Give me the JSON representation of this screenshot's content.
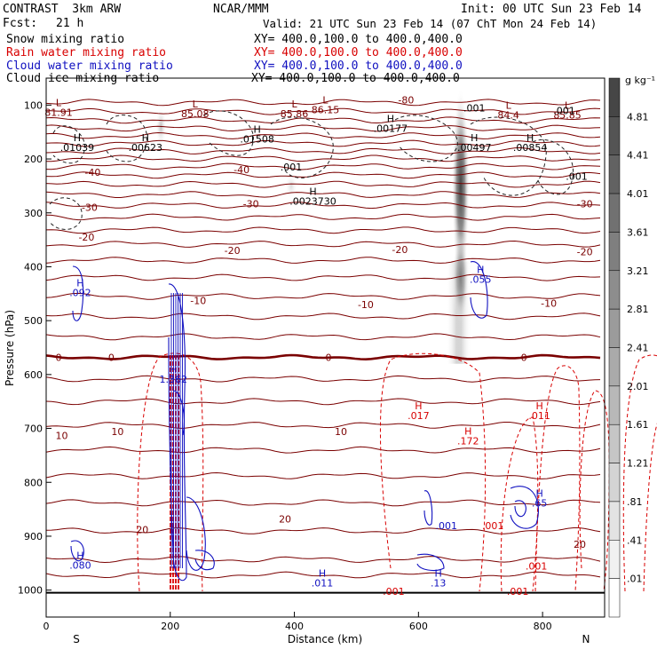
{
  "header": {
    "model": "CONTRAST  3km ARW",
    "fcst_label": "Fcst:",
    "fcst_value": "21 h",
    "center": "NCAR/MMM",
    "init": "Init: 00 UTC Sun 23 Feb 14",
    "valid": "Valid: 21 UTC Sun 23 Feb 14 (07 ChT Mon 24 Feb 14)",
    "fields": [
      {
        "name": "Snow mixing ratio",
        "xy": "XY= 400.0,100.0 to 400.0,400.0",
        "color": "#000000"
      },
      {
        "name": "Rain water mixing ratio",
        "xy": "XY= 400.0,100.0 to 400.0,400.0",
        "color": "#d80000"
      },
      {
        "name": "Cloud water mixing ratio",
        "xy": "XY= 400.0,100.0 to 400.0,400.0",
        "color": "#1010c0"
      },
      {
        "name": "Cloud ice mixing ratio",
        "xy": "XY= 400.0,100.0 to 400.0,400.0",
        "color": "#000000"
      }
    ]
  },
  "chart_data": {
    "type": "cross-section",
    "xlabel": "Distance (km)",
    "ylabel": "Pressure (hPa)",
    "xlim": [
      0,
      900
    ],
    "ylim": [
      1050,
      50
    ],
    "x_ticks": [
      0,
      200,
      400,
      600,
      800
    ],
    "y_ticks": [
      100,
      200,
      300,
      400,
      500,
      600,
      700,
      800,
      900,
      1000
    ],
    "x_end_labels": {
      "left": "S",
      "right": "N"
    },
    "colorbar": {
      "unit": "g kg⁻¹",
      "levels": [
        "4.81",
        "4.41",
        "4.01",
        "3.61",
        "3.21",
        "2.81",
        "2.41",
        "2.01",
        "1.61",
        "1.21",
        ".81",
        ".41",
        ".01"
      ]
    },
    "temperature_isotherm_labels": [
      {
        "label": "-80",
        "x": 580,
        "p": 90
      },
      {
        "label": "-40",
        "x": 75,
        "p": 225
      },
      {
        "label": "-40",
        "x": 315,
        "p": 220
      },
      {
        "label": "-30",
        "x": 70,
        "p": 290
      },
      {
        "label": "-30",
        "x": 330,
        "p": 283
      },
      {
        "label": "-30",
        "x": 868,
        "p": 283
      },
      {
        "label": "-20",
        "x": 65,
        "p": 345
      },
      {
        "label": "-20",
        "x": 300,
        "p": 370
      },
      {
        "label": "-20",
        "x": 570,
        "p": 368
      },
      {
        "label": "-20",
        "x": 868,
        "p": 372
      },
      {
        "label": "-10",
        "x": 245,
        "p": 463
      },
      {
        "label": "-10",
        "x": 515,
        "p": 470
      },
      {
        "label": "-10",
        "x": 810,
        "p": 468
      },
      {
        "label": "0",
        "x": 20,
        "p": 568
      },
      {
        "label": "0",
        "x": 105,
        "p": 568
      },
      {
        "label": "0",
        "x": 455,
        "p": 568
      },
      {
        "label": "0",
        "x": 770,
        "p": 568
      },
      {
        "label": "10",
        "x": 25,
        "p": 713
      },
      {
        "label": "10",
        "x": 115,
        "p": 706
      },
      {
        "label": "10",
        "x": 475,
        "p": 706
      },
      {
        "label": "20",
        "x": 155,
        "p": 888
      },
      {
        "label": "20",
        "x": 385,
        "p": 868
      },
      {
        "label": "20",
        "x": 860,
        "p": 915
      }
    ],
    "extrema_labels": [
      {
        "letter": "L",
        "value": "81.91",
        "x": 20,
        "p": 105,
        "color": "#7a0000"
      },
      {
        "letter": "L",
        "value": "85.08",
        "x": 240,
        "p": 108,
        "color": "#7a0000"
      },
      {
        "letter": "L",
        "value": "85.86",
        "x": 400,
        "p": 108,
        "color": "#7a0000"
      },
      {
        "letter": "L",
        "value": "86.15",
        "x": 450,
        "p": 100,
        "color": "#7a0000"
      },
      {
        "letter": "L",
        "value": "84.4",
        "x": 745,
        "p": 110,
        "color": "#7a0000"
      },
      {
        "letter": "L",
        "value": "85.85",
        "x": 840,
        "p": 110,
        "color": "#7a0000"
      },
      {
        "letter": "H",
        "value": ".00177",
        "x": 555,
        "p": 135,
        "color": "#000000"
      },
      {
        "letter": "H",
        "value": ".01039",
        "x": 50,
        "p": 170,
        "color": "#000000"
      },
      {
        "letter": "H",
        "value": ".00623",
        "x": 160,
        "p": 170,
        "color": "#000000"
      },
      {
        "letter": "H",
        "value": ".01508",
        "x": 340,
        "p": 155,
        "color": "#000000"
      },
      {
        "letter": "H",
        "value": ".00497",
        "x": 690,
        "p": 170,
        "color": "#000000"
      },
      {
        "letter": "H",
        "value": ".00854",
        "x": 780,
        "p": 170,
        "color": "#000000"
      },
      {
        "letter": "H",
        "value": ".0023730",
        "x": 430,
        "p": 270,
        "color": "#000000"
      },
      {
        "letter": "H",
        "value": ".092",
        "x": 55,
        "p": 440,
        "color": "#1010c0"
      },
      {
        "letter": "H",
        "value": ".055",
        "x": 700,
        "p": 415,
        "color": "#1010c0"
      },
      {
        "letter": "H",
        "value": "1.362",
        "x": 205,
        "p": 600,
        "color": "#1010c0"
      },
      {
        "letter": "H",
        "value": ".017",
        "x": 600,
        "p": 668,
        "color": "#d80000"
      },
      {
        "letter": "H",
        "value": ".172",
        "x": 680,
        "p": 715,
        "color": "#d80000"
      },
      {
        "letter": "H",
        "value": ".011",
        "x": 795,
        "p": 668,
        "color": "#d80000"
      },
      {
        "letter": "H",
        "value": ".65",
        "x": 795,
        "p": 830,
        "color": "#1010c0"
      },
      {
        "letter": "H",
        "value": ".080",
        "x": 55,
        "p": 945,
        "color": "#1010c0"
      },
      {
        "letter": "H",
        "value": ".011",
        "x": 445,
        "p": 978,
        "color": "#1010c0"
      },
      {
        "letter": "H",
        "value": ".13",
        "x": 632,
        "p": 978,
        "color": "#1010c0"
      }
    ],
    "contour_value_labels": [
      {
        "value": ".001",
        "x": 835,
        "p": 110,
        "color": "#000000"
      },
      {
        "value": ".001",
        "x": 690,
        "p": 105,
        "color": "#000000"
      },
      {
        "value": ".001",
        "x": 395,
        "p": 215,
        "color": "#000000"
      },
      {
        "value": ".001",
        "x": 855,
        "p": 232,
        "color": "#000000"
      },
      {
        "value": ".001",
        "x": 645,
        "p": 880,
        "color": "#1010c0"
      },
      {
        "value": ".001",
        "x": 720,
        "p": 880,
        "color": "#d80000"
      },
      {
        "value": ".001",
        "x": 790,
        "p": 955,
        "color": "#d80000"
      },
      {
        "value": ".001",
        "x": 560,
        "p": 1002,
        "color": "#d80000"
      },
      {
        "value": ".001",
        "x": 760,
        "p": 1002,
        "color": "#d80000"
      }
    ]
  }
}
